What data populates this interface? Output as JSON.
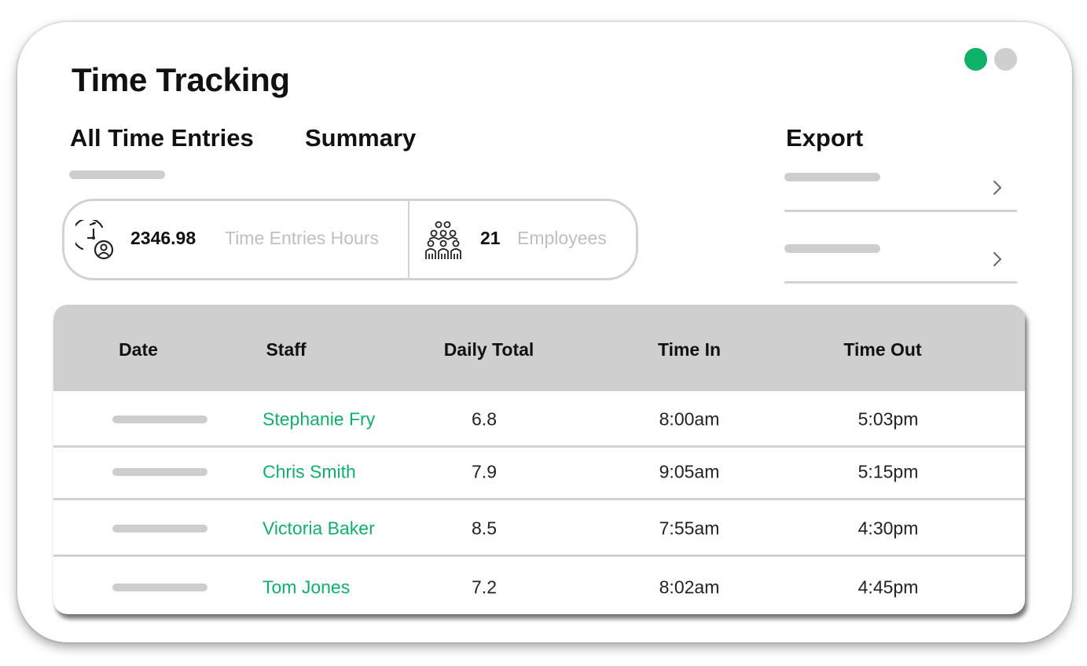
{
  "app": {
    "title": "Time Tracking",
    "status_colors": {
      "active": "#0fb169",
      "inactive": "#cfcfcf"
    }
  },
  "tabs": {
    "all_entries": "All Time Entries",
    "summary": "Summary",
    "export": "Export"
  },
  "stats": {
    "hours_value": "2346.98",
    "hours_label": "Time Entries Hours",
    "hours_icon": "clock-user-icon",
    "employees_value": "21",
    "employees_label": "Employees",
    "employees_icon": "group-icon"
  },
  "export_rows": [
    {
      "icon": "chevron-right-icon"
    },
    {
      "icon": "chevron-right-icon"
    }
  ],
  "table": {
    "columns": [
      "Date",
      "Staff",
      "Daily Total",
      "Time In",
      "Time Out"
    ],
    "rows": [
      {
        "staff": "Stephanie Fry",
        "daily_total": "6.8",
        "time_in": "8:00am",
        "time_out": "5:03pm"
      },
      {
        "staff": "Chris Smith",
        "daily_total": "7.9",
        "time_in": "9:05am",
        "time_out": "5:15pm"
      },
      {
        "staff": "Victoria Baker",
        "daily_total": "8.5",
        "time_in": "7:55am",
        "time_out": "4:30pm"
      },
      {
        "staff": "Tom Jones",
        "daily_total": "7.2",
        "time_in": "8:02am",
        "time_out": "4:45pm"
      }
    ]
  }
}
